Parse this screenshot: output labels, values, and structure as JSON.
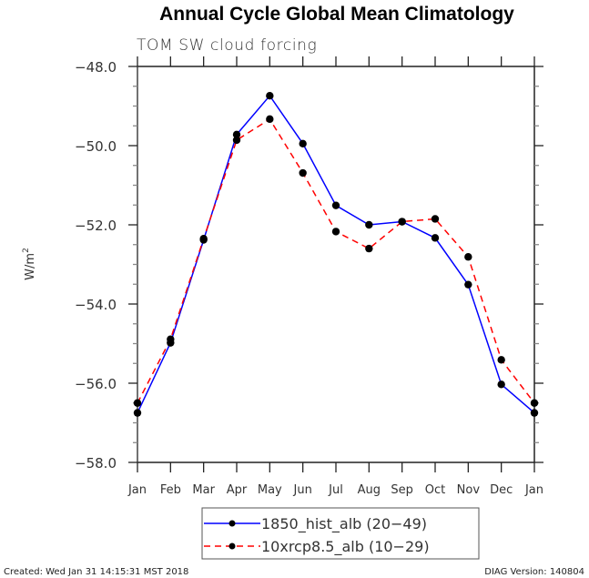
{
  "chart_data": {
    "type": "line",
    "title": "Annual Cycle Global Mean Climatology",
    "subtitle": "TOM SW cloud forcing",
    "xlabel": "",
    "ylabel": "W/m",
    "ylabel_superscript": "2",
    "categories": [
      "Jan",
      "Feb",
      "Mar",
      "Apr",
      "May",
      "Jun",
      "Jul",
      "Aug",
      "Sep",
      "Oct",
      "Nov",
      "Dec",
      "Jan"
    ],
    "ylim": [
      -58.0,
      -48.0
    ],
    "yticks": [
      -48.0,
      -50.0,
      -52.0,
      -54.0,
      -56.0,
      -58.0
    ],
    "ytick_labels": [
      "−48.0",
      "−50.0",
      "−52.0",
      "−54.0",
      "−56.0",
      "−58.0"
    ],
    "yminor_step": 0.5,
    "grid": false,
    "legend_position": "bottom-center",
    "series": [
      {
        "name": "1850_hist_alb (20−49)",
        "color": "#0000ff",
        "dash": "solid",
        "marker": "filled-circle",
        "values": [
          -56.75,
          -54.98,
          -52.38,
          -49.72,
          -48.74,
          -49.95,
          -51.51,
          -52.0,
          -51.92,
          -52.33,
          -53.51,
          -56.03,
          -56.75
        ]
      },
      {
        "name": "10xrcp8.5_alb (10−29)",
        "color": "#ff0000",
        "dash": "dashed",
        "marker": "filled-circle",
        "values": [
          -56.5,
          -54.89,
          -52.35,
          -49.86,
          -49.33,
          -50.69,
          -52.17,
          -52.6,
          -51.92,
          -51.85,
          -52.81,
          -55.41,
          -56.5
        ]
      }
    ]
  },
  "footer": {
    "created": "Created: Wed Jan 31 14:15:31 MST 2018",
    "version": "DIAG Version: 140804"
  }
}
